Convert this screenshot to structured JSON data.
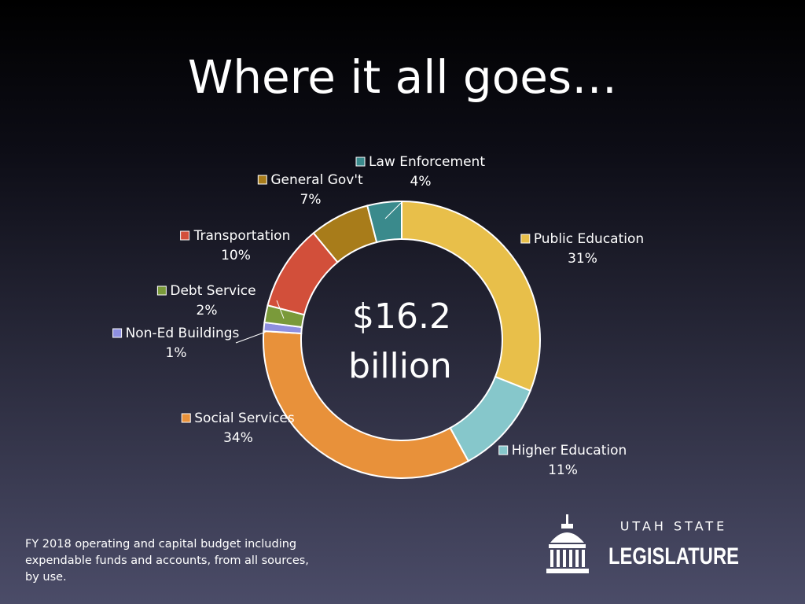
{
  "chart_data": {
    "type": "donut",
    "title": "Where it all goes…",
    "center_text": [
      "$16.2",
      "billion"
    ],
    "categories": [
      "Public Education",
      "Higher Education",
      "Social Services",
      "Non-Ed Buildings",
      "Debt Service",
      "Transportation",
      "General Gov't",
      "Law Enforcement"
    ],
    "values": [
      31,
      11,
      34,
      1,
      2,
      10,
      7,
      4
    ],
    "value_labels": [
      "31%",
      "11%",
      "34%",
      "1%",
      "2%",
      "10%",
      "7%",
      "4%"
    ],
    "colors": [
      "#e8bf4a",
      "#86c7cb",
      "#e8913a",
      "#8e8fe0",
      "#7a9a3a",
      "#d24f3a",
      "#a87c1a",
      "#3a8a8c"
    ]
  },
  "footnote": "FY 2018 operating and capital budget including expendable funds and accounts, from all sources, by use.",
  "logo": {
    "line1": "UTAH STATE",
    "line2": "LEGISLATURE"
  }
}
